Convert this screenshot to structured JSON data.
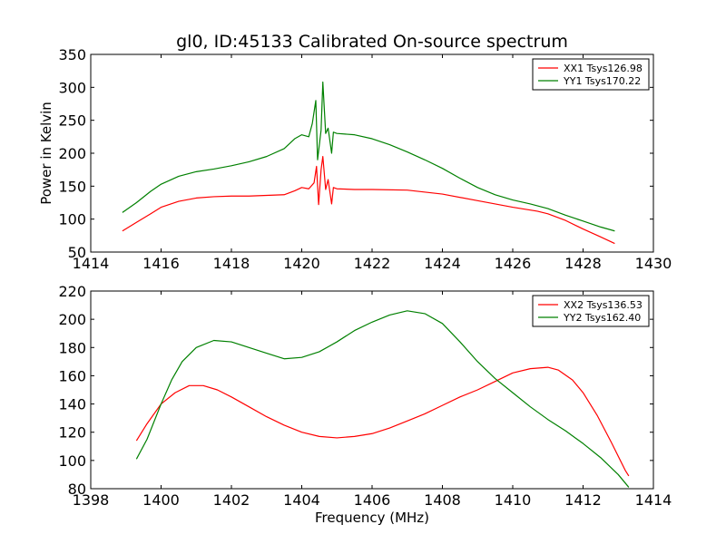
{
  "figure": {
    "title": "gl0, ID:45133 Calibrated On-source spectrum"
  },
  "chart_data": [
    {
      "type": "line",
      "ylabel": "Power in Kelvin",
      "xlabel": "",
      "xlim": [
        1414,
        1430
      ],
      "ylim": [
        50,
        350
      ],
      "xticks": [
        1414,
        1416,
        1418,
        1420,
        1422,
        1424,
        1426,
        1428,
        1430
      ],
      "yticks": [
        50,
        100,
        150,
        200,
        250,
        300,
        350
      ],
      "legend_position": "top-right",
      "series": [
        {
          "name": "XX1 Tsys126.98",
          "color": "#ff0000",
          "points": [
            [
              1414.9,
              82
            ],
            [
              1415.3,
              95
            ],
            [
              1415.7,
              108
            ],
            [
              1416.0,
              118
            ],
            [
              1416.5,
              127
            ],
            [
              1417.0,
              132
            ],
            [
              1417.5,
              134
            ],
            [
              1418.0,
              135
            ],
            [
              1418.5,
              135
            ],
            [
              1419.0,
              136
            ],
            [
              1419.5,
              137
            ],
            [
              1419.8,
              143
            ],
            [
              1420.0,
              148
            ],
            [
              1420.2,
              146
            ],
            [
              1420.35,
              155
            ],
            [
              1420.42,
              180
            ],
            [
              1420.48,
              122
            ],
            [
              1420.55,
              175
            ],
            [
              1420.6,
              195
            ],
            [
              1420.68,
              145
            ],
            [
              1420.75,
              160
            ],
            [
              1420.85,
              123
            ],
            [
              1420.9,
              148
            ],
            [
              1421.0,
              146
            ],
            [
              1421.5,
              145
            ],
            [
              1422.0,
              145
            ],
            [
              1423.0,
              144
            ],
            [
              1424.0,
              138
            ],
            [
              1425.0,
              128
            ],
            [
              1426.0,
              118
            ],
            [
              1426.7,
              112
            ],
            [
              1427.0,
              108
            ],
            [
              1427.5,
              98
            ],
            [
              1428.0,
              85
            ],
            [
              1428.5,
              73
            ],
            [
              1428.9,
              63
            ]
          ]
        },
        {
          "name": "YY1 Tsys170.22",
          "color": "#008000",
          "points": [
            [
              1414.9,
              110
            ],
            [
              1415.3,
              125
            ],
            [
              1415.7,
              142
            ],
            [
              1416.0,
              153
            ],
            [
              1416.5,
              165
            ],
            [
              1417.0,
              172
            ],
            [
              1417.5,
              176
            ],
            [
              1418.0,
              181
            ],
            [
              1418.5,
              187
            ],
            [
              1419.0,
              195
            ],
            [
              1419.5,
              207
            ],
            [
              1419.8,
              222
            ],
            [
              1420.0,
              228
            ],
            [
              1420.2,
              225
            ],
            [
              1420.3,
              245
            ],
            [
              1420.4,
              280
            ],
            [
              1420.45,
              190
            ],
            [
              1420.55,
              235
            ],
            [
              1420.6,
              308
            ],
            [
              1420.68,
              230
            ],
            [
              1420.75,
              238
            ],
            [
              1420.85,
              200
            ],
            [
              1420.9,
              232
            ],
            [
              1421.0,
              230
            ],
            [
              1421.5,
              228
            ],
            [
              1422.0,
              222
            ],
            [
              1422.5,
              213
            ],
            [
              1423.0,
              202
            ],
            [
              1423.5,
              190
            ],
            [
              1424.0,
              177
            ],
            [
              1424.5,
              162
            ],
            [
              1425.0,
              148
            ],
            [
              1425.5,
              137
            ],
            [
              1426.0,
              129
            ],
            [
              1426.5,
              123
            ],
            [
              1427.0,
              116
            ],
            [
              1427.5,
              106
            ],
            [
              1428.0,
              97
            ],
            [
              1428.5,
              88
            ],
            [
              1428.9,
              82
            ]
          ]
        }
      ]
    },
    {
      "type": "line",
      "ylabel": "",
      "xlabel": "Frequency (MHz)",
      "xlim": [
        1398,
        1414
      ],
      "ylim": [
        80,
        220
      ],
      "xticks": [
        1398,
        1400,
        1402,
        1404,
        1406,
        1408,
        1410,
        1412,
        1414
      ],
      "yticks": [
        80,
        100,
        120,
        140,
        160,
        180,
        200,
        220
      ],
      "legend_position": "top-right",
      "series": [
        {
          "name": "XX2 Tsys136.53",
          "color": "#ff0000",
          "points": [
            [
              1399.3,
              114
            ],
            [
              1399.6,
              126
            ],
            [
              1400.0,
              140
            ],
            [
              1400.4,
              148
            ],
            [
              1400.8,
              153
            ],
            [
              1401.2,
              153
            ],
            [
              1401.6,
              150
            ],
            [
              1402.0,
              145
            ],
            [
              1402.5,
              138
            ],
            [
              1403.0,
              131
            ],
            [
              1403.5,
              125
            ],
            [
              1404.0,
              120
            ],
            [
              1404.5,
              117
            ],
            [
              1405.0,
              116
            ],
            [
              1405.5,
              117
            ],
            [
              1406.0,
              119
            ],
            [
              1406.5,
              123
            ],
            [
              1407.0,
              128
            ],
            [
              1407.5,
              133
            ],
            [
              1408.0,
              139
            ],
            [
              1408.5,
              145
            ],
            [
              1409.0,
              150
            ],
            [
              1409.5,
              156
            ],
            [
              1410.0,
              162
            ],
            [
              1410.5,
              165
            ],
            [
              1411.0,
              166
            ],
            [
              1411.3,
              164
            ],
            [
              1411.7,
              157
            ],
            [
              1412.0,
              148
            ],
            [
              1412.4,
              132
            ],
            [
              1412.8,
              113
            ],
            [
              1413.2,
              93
            ],
            [
              1413.3,
              89
            ]
          ]
        },
        {
          "name": "YY2 Tsys162.40",
          "color": "#008000",
          "points": [
            [
              1399.3,
              101
            ],
            [
              1399.6,
              115
            ],
            [
              1400.0,
              140
            ],
            [
              1400.3,
              157
            ],
            [
              1400.6,
              170
            ],
            [
              1401.0,
              180
            ],
            [
              1401.5,
              185
            ],
            [
              1402.0,
              184
            ],
            [
              1402.5,
              180
            ],
            [
              1403.0,
              176
            ],
            [
              1403.5,
              172
            ],
            [
              1404.0,
              173
            ],
            [
              1404.5,
              177
            ],
            [
              1405.0,
              184
            ],
            [
              1405.5,
              192
            ],
            [
              1406.0,
              198
            ],
            [
              1406.5,
              203
            ],
            [
              1407.0,
              206
            ],
            [
              1407.5,
              204
            ],
            [
              1408.0,
              197
            ],
            [
              1408.5,
              184
            ],
            [
              1409.0,
              170
            ],
            [
              1409.5,
              158
            ],
            [
              1410.0,
              148
            ],
            [
              1410.5,
              138
            ],
            [
              1411.0,
              129
            ],
            [
              1411.5,
              121
            ],
            [
              1412.0,
              112
            ],
            [
              1412.5,
              102
            ],
            [
              1413.0,
              90
            ],
            [
              1413.3,
              81
            ]
          ]
        }
      ]
    }
  ]
}
